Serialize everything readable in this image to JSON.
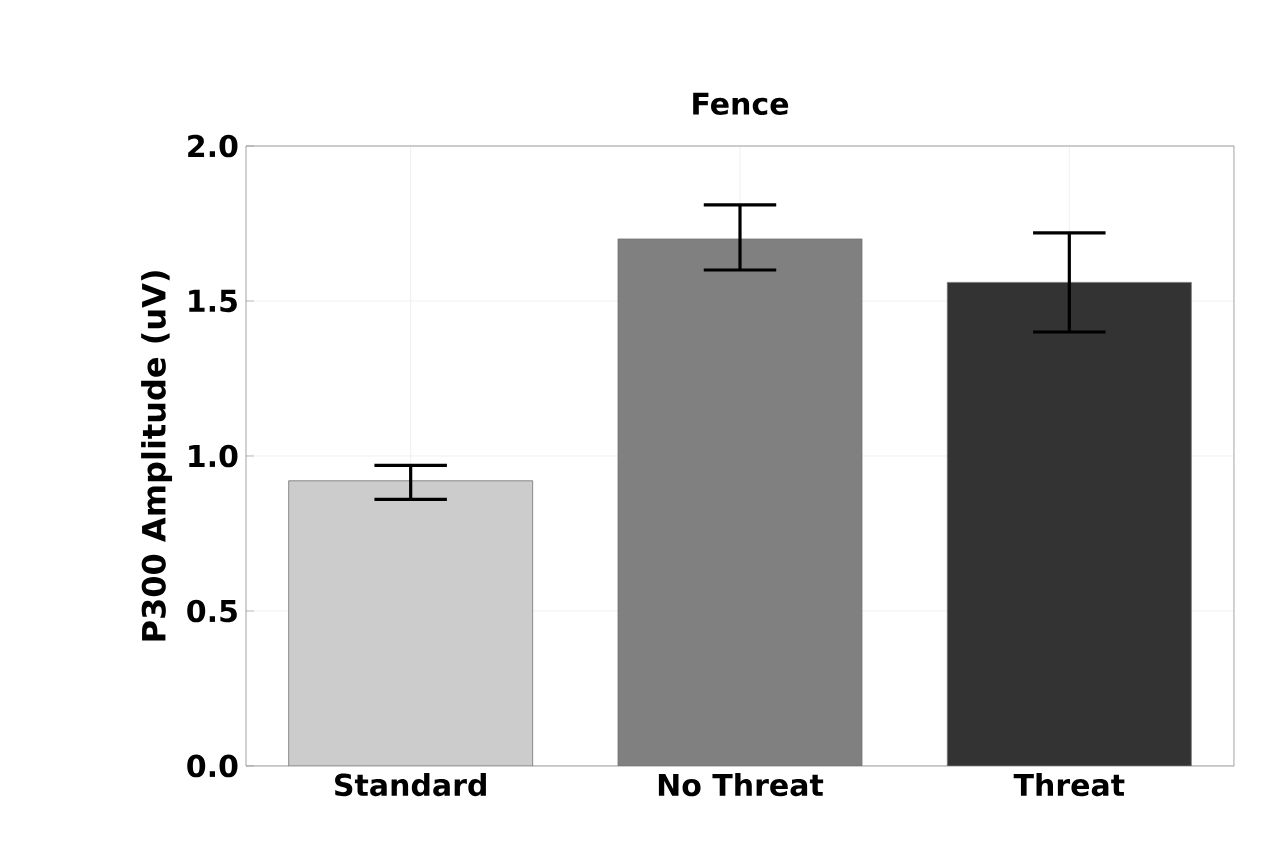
{
  "chart_data": {
    "type": "bar",
    "title": "Fence",
    "ylabel": "P300 Amplitude (uV)",
    "categories": [
      "Standard",
      "No Threat",
      "Threat"
    ],
    "values": [
      0.92,
      1.7,
      1.56
    ],
    "colors": [
      "#cccccc",
      "#808080",
      "#333333"
    ],
    "errors": [
      [
        0.86,
        0.97
      ],
      [
        1.6,
        1.81
      ],
      [
        1.4,
        1.72
      ]
    ],
    "ylim": [
      0,
      2.0
    ],
    "yticks": [
      {
        "value": 0,
        "label": "0.0"
      },
      {
        "value": 0.5,
        "label": "0.5"
      },
      {
        "value": 1.0,
        "label": "1.0"
      },
      {
        "value": 1.5,
        "label": "1.5"
      },
      {
        "value": 2.0,
        "label": "2.0"
      }
    ],
    "grid": true
  }
}
